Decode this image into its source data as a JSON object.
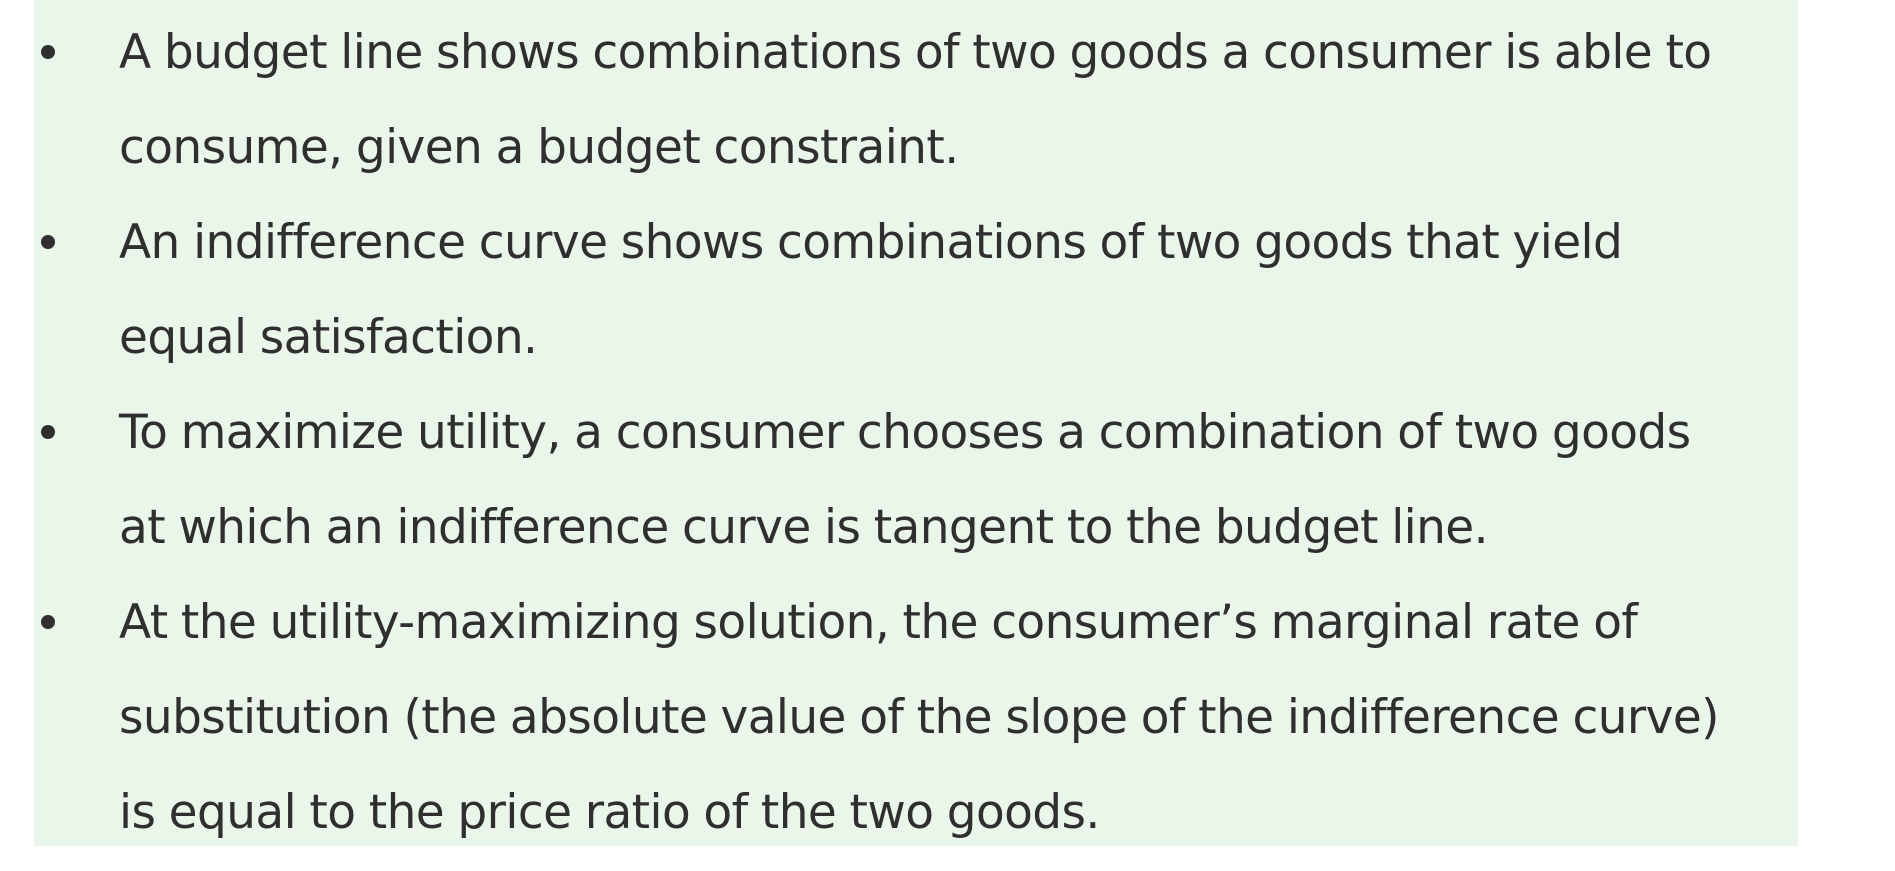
{
  "bullets": [
    {
      "lines": [
        "A budget line shows combinations of two goods a consumer is able to",
        "consume, given a budget constraint."
      ]
    },
    {
      "lines": [
        "An indifference curve shows combinations of two goods that yield",
        "equal satisfaction."
      ]
    },
    {
      "lines": [
        "To maximize utility, a consumer chooses a combination of two goods",
        "at which an indifference curve is tangent to the budget line."
      ]
    },
    {
      "lines": [
        "At the utility-maximizing solution, the consumer’s marginal rate of",
        "substitution (the absolute value of the slope of the indifference curve)",
        "is equal to the price ratio of the two goods."
      ]
    }
  ],
  "colors": {
    "panel_background": "#eaf6ea",
    "text": "#2f2f2f"
  }
}
